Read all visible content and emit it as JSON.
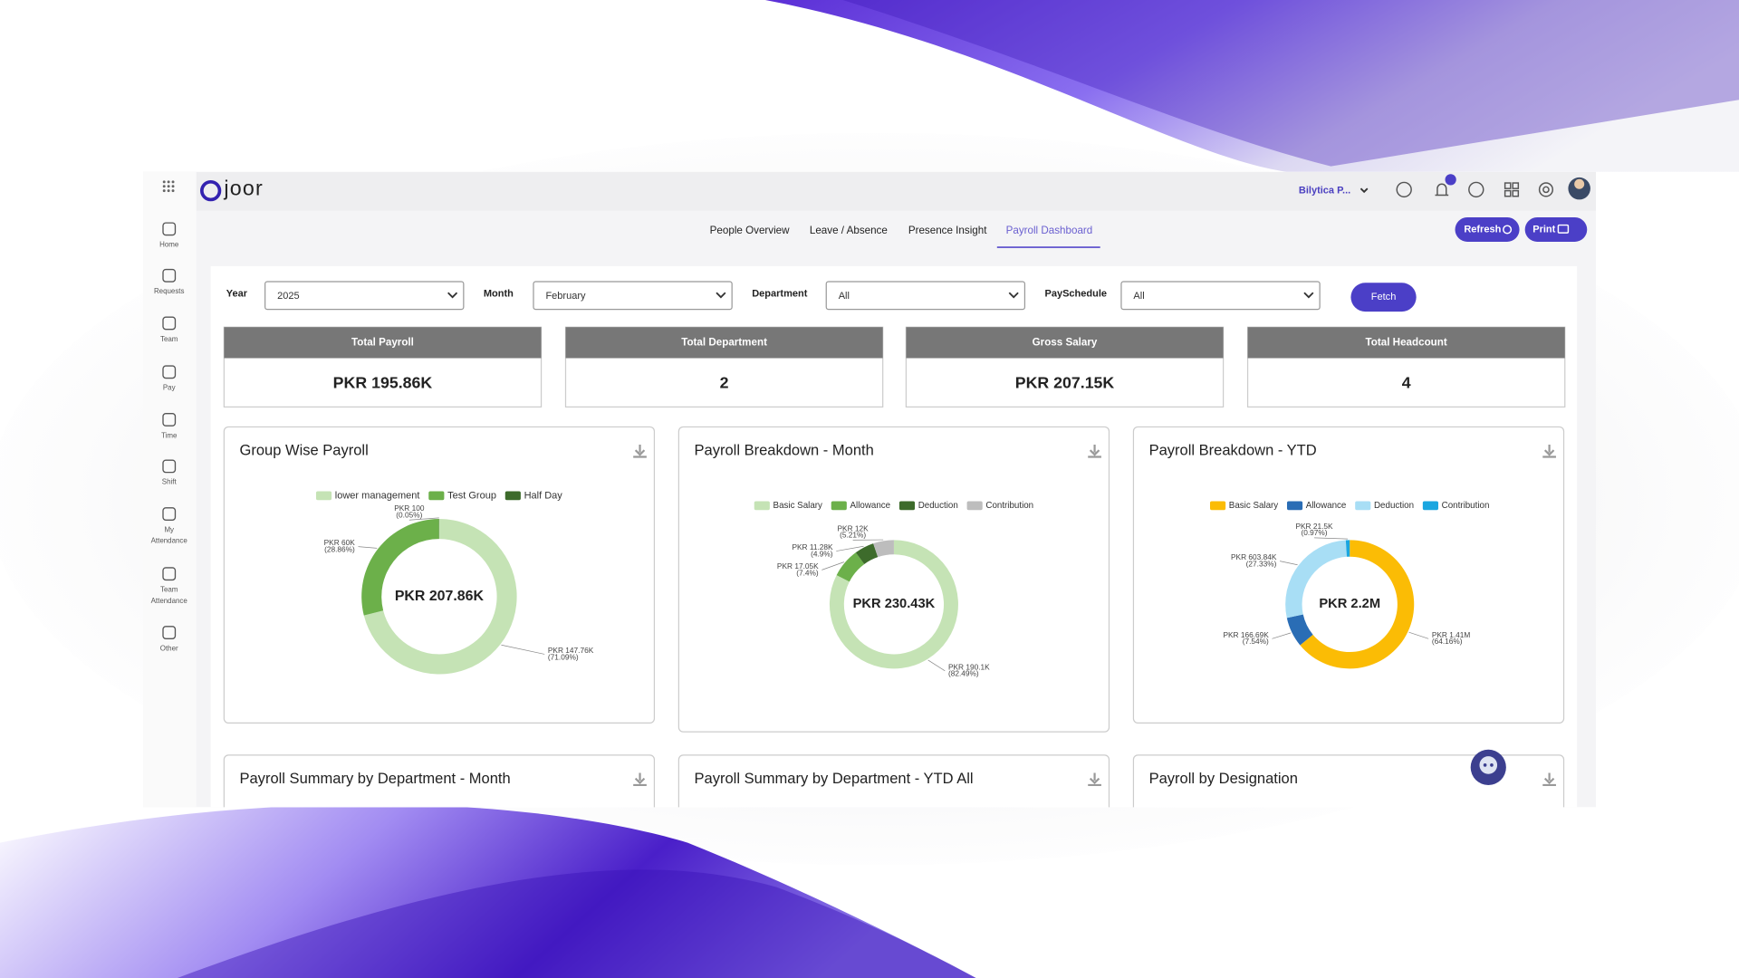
{
  "app": {
    "logo": "joor",
    "org": "Bilytica P..."
  },
  "sidebar": [
    {
      "label": [
        "Home"
      ]
    },
    {
      "label": [
        "Requests"
      ]
    },
    {
      "label": [
        "Team"
      ]
    },
    {
      "label": [
        "Pay"
      ]
    },
    {
      "label": [
        "Time"
      ]
    },
    {
      "label": [
        "Shift"
      ]
    },
    {
      "label": [
        "My",
        "Attendance"
      ]
    },
    {
      "label": [
        "Team",
        "Attendance"
      ]
    },
    {
      "label": [
        "Other"
      ]
    }
  ],
  "tabs": [
    "People Overview",
    "Leave / Absence",
    "Presence Insight",
    "Payroll Dashboard"
  ],
  "buttons": {
    "refresh": "Refresh",
    "print": "Print",
    "fetch": "Fetch"
  },
  "filters": [
    {
      "label": "Year",
      "value": "2025"
    },
    {
      "label": "Month",
      "value": "February"
    },
    {
      "label": "Department",
      "value": "All"
    },
    {
      "label": "PaySchedule",
      "value": "All"
    }
  ],
  "kpis": [
    {
      "title": "Total Payroll",
      "value": "PKR 195.86K"
    },
    {
      "title": "Total Department",
      "value": 2
    },
    {
      "title": "Gross Salary",
      "value": "PKR 207.15K"
    },
    {
      "title": "Total Headcount",
      "value": 4
    }
  ],
  "charts": [
    {
      "type": "donut",
      "title": "Group Wise Payroll",
      "center_label": "PKR 207.86K",
      "series": [
        {
          "name": "lower management",
          "color": "#c5e3b5",
          "values": [
            147760
          ],
          "value_labels": [
            "PKR 147.76K"
          ],
          "percent_labels": [
            "(71.09%)"
          ]
        },
        {
          "name": "Test Group",
          "color": "#6cb04a",
          "values": [
            60000
          ],
          "value_labels": [
            "PKR 60K"
          ],
          "percent_labels": [
            "(28.86%)"
          ]
        },
        {
          "name": "Half Day",
          "color": "#3d6b2b",
          "values": [
            100
          ],
          "value_labels": [
            "PKR 100"
          ],
          "percent_labels": [
            "(0.05%)"
          ]
        }
      ]
    },
    {
      "type": "donut",
      "title": "Payroll Breakdown - Month",
      "center_label": "PKR 230.43K",
      "series": [
        {
          "name": "Basic Salary",
          "color": "#c5e3b5",
          "values": [
            190100
          ],
          "value_labels": [
            "PKR 190.1K"
          ],
          "percent_labels": [
            "(82.49%)"
          ]
        },
        {
          "name": "Allowance",
          "color": "#6cb04a",
          "values": [
            17050
          ],
          "value_labels": [
            "PKR 17.05K"
          ],
          "percent_labels": [
            "(7.4%)"
          ]
        },
        {
          "name": "Deduction",
          "color": "#3d6b2b",
          "values": [
            11280
          ],
          "value_labels": [
            "PKR 11.28K"
          ],
          "percent_labels": [
            "(4.9%)"
          ]
        },
        {
          "name": "Contribution",
          "color": "#bdbdbd",
          "values": [
            12000
          ],
          "value_labels": [
            "PKR 12K"
          ],
          "percent_labels": [
            "(5.21%)"
          ]
        }
      ]
    },
    {
      "type": "donut",
      "title": "Payroll Breakdown - YTD",
      "center_label": "PKR 2.2M",
      "series": [
        {
          "name": "Basic Salary",
          "color": "#fbbc05",
          "values": [
            1410000
          ],
          "value_labels": [
            "PKR 1.41M"
          ],
          "percent_labels": [
            "(64.16%)"
          ]
        },
        {
          "name": "Allowance",
          "color": "#2a6db5",
          "values": [
            166690
          ],
          "value_labels": [
            "PKR 166.69K"
          ],
          "percent_labels": [
            "(7.54%)"
          ]
        },
        {
          "name": "Deduction",
          "color": "#a8def5",
          "values": [
            603840
          ],
          "value_labels": [
            "PKR 603.84K"
          ],
          "percent_labels": [
            "(27.33%)"
          ]
        },
        {
          "name": "Contribution",
          "color": "#1aa6e0",
          "values": [
            21500
          ],
          "value_labels": [
            "PKR 21.5K"
          ],
          "percent_labels": [
            "(0.97%)"
          ]
        }
      ]
    }
  ],
  "bottom_cards": [
    "Payroll Summary by Department - Month",
    "Payroll Summary by Department - YTD All",
    "Payroll by Designation"
  ]
}
